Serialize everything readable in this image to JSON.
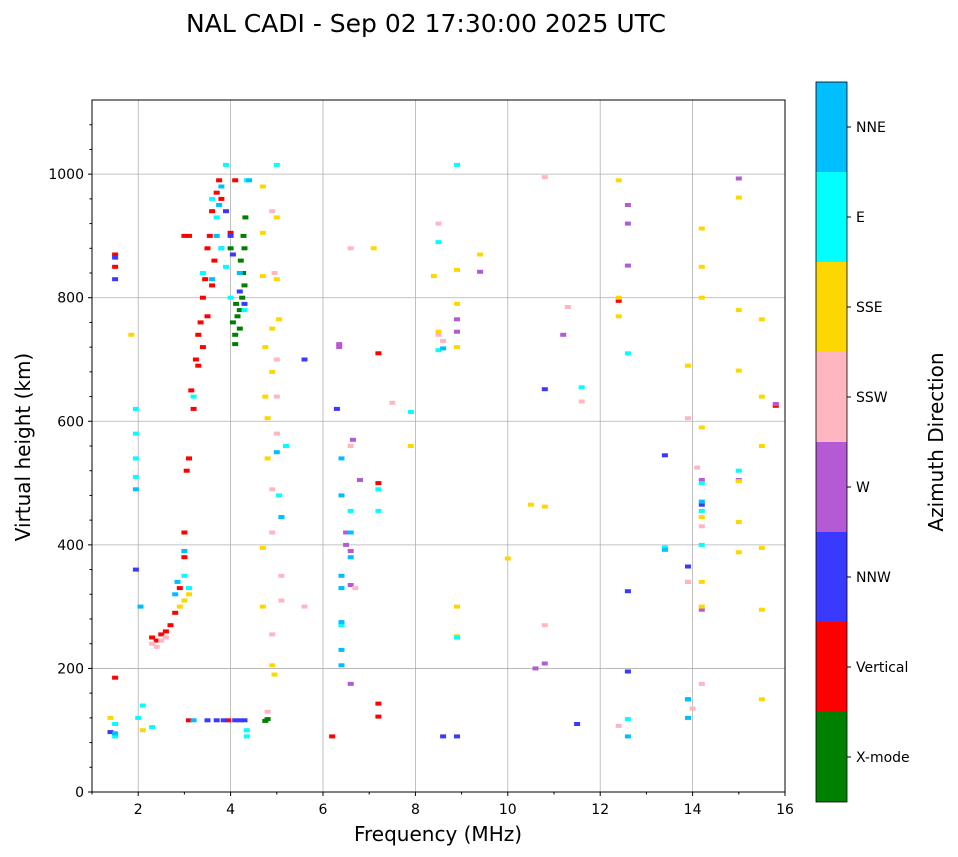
{
  "chart_data": {
    "type": "scatter",
    "title": "NAL CADI - Sep 02 17:30:00 2025 UTC",
    "xlabel": "Frequency (MHz)",
    "ylabel": "Virtual height (km)",
    "xlim": [
      1,
      16
    ],
    "ylim": [
      0,
      1120
    ],
    "xticks": [
      2,
      4,
      6,
      8,
      10,
      12,
      14,
      16
    ],
    "yticks": [
      0,
      200,
      400,
      600,
      800,
      1000
    ],
    "grid": true,
    "colorbar": {
      "label": "Azimuth Direction",
      "categories": [
        {
          "name": "X-mode",
          "color": "#008000"
        },
        {
          "name": "Vertical",
          "color": "#ff0000"
        },
        {
          "name": "NNW",
          "color": "#3a3aff"
        },
        {
          "name": "W",
          "color": "#b45ad4"
        },
        {
          "name": "SSW",
          "color": "#ffb6c1"
        },
        {
          "name": "SSE",
          "color": "#ffd700"
        },
        {
          "name": "E",
          "color": "#00ffff"
        },
        {
          "name": "NNE",
          "color": "#00bfff"
        }
      ]
    },
    "series": [
      {
        "name": "X-mode",
        "points": [
          [
            4.05,
            760
          ],
          [
            4.1,
            740
          ],
          [
            4.15,
            770
          ],
          [
            4.2,
            780
          ],
          [
            4.25,
            800
          ],
          [
            4.3,
            820
          ],
          [
            4.22,
            860
          ],
          [
            4.28,
            900
          ],
          [
            4.32,
            930
          ],
          [
            4.1,
            725
          ],
          [
            4.2,
            750
          ],
          [
            4.12,
            790
          ],
          [
            4.27,
            840
          ],
          [
            4.0,
            880
          ],
          [
            4.3,
            880
          ],
          [
            4.75,
            115
          ],
          [
            4.8,
            118
          ]
        ]
      },
      {
        "name": "Vertical",
        "points": [
          [
            1.5,
            850
          ],
          [
            1.5,
            870
          ],
          [
            1.5,
            185
          ],
          [
            2.3,
            250
          ],
          [
            2.4,
            245
          ],
          [
            2.5,
            255
          ],
          [
            2.6,
            260
          ],
          [
            2.7,
            270
          ],
          [
            2.8,
            290
          ],
          [
            2.9,
            330
          ],
          [
            3.0,
            380
          ],
          [
            3.05,
            520
          ],
          [
            3.1,
            540
          ],
          [
            3.2,
            620
          ],
          [
            3.25,
            700
          ],
          [
            3.3,
            740
          ],
          [
            3.35,
            760
          ],
          [
            3.4,
            800
          ],
          [
            3.45,
            830
          ],
          [
            3.5,
            880
          ],
          [
            3.55,
            900
          ],
          [
            3.6,
            940
          ],
          [
            3.7,
            970
          ],
          [
            3.75,
            990
          ],
          [
            3.8,
            960
          ],
          [
            3.3,
            690
          ],
          [
            3.4,
            720
          ],
          [
            3.5,
            770
          ],
          [
            3.6,
            820
          ],
          [
            3.65,
            860
          ],
          [
            3.15,
            650
          ],
          [
            3.0,
            420
          ],
          [
            3.0,
            900
          ],
          [
            3.1,
            900
          ],
          [
            4.1,
            990
          ],
          [
            4.0,
            905
          ],
          [
            3.1,
            116
          ],
          [
            3.95,
            116
          ],
          [
            6.2,
            90
          ],
          [
            7.2,
            143
          ],
          [
            7.2,
            122
          ],
          [
            7.2,
            710
          ],
          [
            7.2,
            500
          ],
          [
            12.4,
            795
          ],
          [
            15.8,
            625
          ]
        ]
      },
      {
        "name": "NNW",
        "points": [
          [
            1.5,
            830
          ],
          [
            1.5,
            865
          ],
          [
            1.4,
            97
          ],
          [
            3.5,
            116
          ],
          [
            3.7,
            116
          ],
          [
            3.85,
            116
          ],
          [
            4.1,
            116
          ],
          [
            4.2,
            116
          ],
          [
            4.3,
            116
          ],
          [
            4.0,
            900
          ],
          [
            4.05,
            870
          ],
          [
            4.2,
            810
          ],
          [
            4.3,
            790
          ],
          [
            5.6,
            700
          ],
          [
            6.3,
            620
          ],
          [
            8.6,
            90
          ],
          [
            8.9,
            90
          ],
          [
            10.8,
            652
          ],
          [
            11.5,
            110
          ],
          [
            12.6,
            325
          ],
          [
            12.6,
            195
          ],
          [
            13.4,
            545
          ],
          [
            13.9,
            150
          ],
          [
            13.9,
            365
          ],
          [
            14.2,
            465
          ],
          [
            3.8,
            880
          ],
          [
            3.9,
            940
          ],
          [
            1.95,
            360
          ]
        ]
      },
      {
        "name": "W",
        "points": [
          [
            6.35,
            725
          ],
          [
            6.35,
            720
          ],
          [
            6.5,
            420
          ],
          [
            6.5,
            400
          ],
          [
            6.6,
            390
          ],
          [
            6.6,
            335
          ],
          [
            6.6,
            175
          ],
          [
            6.65,
            570
          ],
          [
            6.8,
            505
          ],
          [
            8.9,
            765
          ],
          [
            8.9,
            745
          ],
          [
            9.4,
            842
          ],
          [
            10.6,
            200
          ],
          [
            10.8,
            208
          ],
          [
            11.2,
            740
          ],
          [
            12.6,
            950
          ],
          [
            12.6,
            920
          ],
          [
            12.6,
            852
          ],
          [
            13.9,
            340
          ],
          [
            14.2,
            295
          ],
          [
            14.2,
            505
          ],
          [
            15.0,
            993
          ],
          [
            15.0,
            505
          ],
          [
            15.8,
            628
          ]
        ]
      },
      {
        "name": "SSW",
        "points": [
          [
            2.3,
            240
          ],
          [
            2.4,
            235
          ],
          [
            2.5,
            245
          ],
          [
            2.6,
            250
          ],
          [
            4.8,
            130
          ],
          [
            4.9,
            255
          ],
          [
            4.9,
            420
          ],
          [
            4.9,
            490
          ],
          [
            5.0,
            580
          ],
          [
            5.0,
            640
          ],
          [
            5.0,
            700
          ],
          [
            4.95,
            840
          ],
          [
            4.9,
            940
          ],
          [
            5.1,
            310
          ],
          [
            5.1,
            350
          ],
          [
            5.6,
            300
          ],
          [
            6.6,
            880
          ],
          [
            6.6,
            560
          ],
          [
            6.7,
            330
          ],
          [
            7.5,
            630
          ],
          [
            8.5,
            920
          ],
          [
            8.5,
            740
          ],
          [
            8.6,
            730
          ],
          [
            10.8,
            995
          ],
          [
            10.8,
            270
          ],
          [
            11.3,
            785
          ],
          [
            11.6,
            632
          ],
          [
            12.4,
            107
          ],
          [
            13.9,
            605
          ],
          [
            13.9,
            340
          ],
          [
            14.1,
            525
          ],
          [
            14.2,
            175
          ],
          [
            14.2,
            430
          ],
          [
            14.0,
            135
          ]
        ]
      },
      {
        "name": "SSE",
        "points": [
          [
            1.85,
            740
          ],
          [
            1.4,
            120
          ],
          [
            2.1,
            100
          ],
          [
            2.9,
            300
          ],
          [
            3.0,
            310
          ],
          [
            3.1,
            320
          ],
          [
            4.7,
            980
          ],
          [
            4.7,
            905
          ],
          [
            4.7,
            835
          ],
          [
            4.75,
            720
          ],
          [
            4.75,
            640
          ],
          [
            4.8,
            605
          ],
          [
            4.8,
            540
          ],
          [
            4.9,
            680
          ],
          [
            4.9,
            750
          ],
          [
            5.0,
            830
          ],
          [
            5.0,
            930
          ],
          [
            4.9,
            205
          ],
          [
            4.95,
            190
          ],
          [
            4.7,
            300
          ],
          [
            4.7,
            395
          ],
          [
            5.05,
            765
          ],
          [
            7.1,
            880
          ],
          [
            7.9,
            560
          ],
          [
            8.4,
            835
          ],
          [
            8.5,
            745
          ],
          [
            8.9,
            845
          ],
          [
            8.9,
            790
          ],
          [
            8.9,
            720
          ],
          [
            8.9,
            300
          ],
          [
            8.9,
            252
          ],
          [
            9.4,
            870
          ],
          [
            10.0,
            378
          ],
          [
            10.5,
            465
          ],
          [
            10.8,
            462
          ],
          [
            12.4,
            990
          ],
          [
            12.4,
            770
          ],
          [
            13.9,
            690
          ],
          [
            14.2,
            912
          ],
          [
            14.2,
            850
          ],
          [
            14.2,
            800
          ],
          [
            14.2,
            590
          ],
          [
            14.2,
            445
          ],
          [
            14.2,
            340
          ],
          [
            14.2,
            300
          ],
          [
            15.0,
            962
          ],
          [
            15.0,
            780
          ],
          [
            15.0,
            682
          ],
          [
            15.0,
            503
          ],
          [
            15.0,
            437
          ],
          [
            15.0,
            388
          ],
          [
            15.5,
            765
          ],
          [
            15.5,
            640
          ],
          [
            15.5,
            560
          ],
          [
            15.5,
            395
          ],
          [
            15.5,
            295
          ],
          [
            15.5,
            150
          ],
          [
            12.4,
            800
          ]
        ]
      },
      {
        "name": "E",
        "points": [
          [
            1.5,
            110
          ],
          [
            1.5,
            90
          ],
          [
            2.0,
            120
          ],
          [
            2.1,
            140
          ],
          [
            2.3,
            105
          ],
          [
            3.0,
            350
          ],
          [
            3.1,
            330
          ],
          [
            3.2,
            640
          ],
          [
            3.4,
            840
          ],
          [
            3.9,
            1015
          ],
          [
            3.6,
            960
          ],
          [
            3.7,
            930
          ],
          [
            3.8,
            880
          ],
          [
            3.9,
            850
          ],
          [
            4.0,
            800
          ],
          [
            4.3,
            780
          ],
          [
            4.35,
            990
          ],
          [
            4.35,
            90
          ],
          [
            4.35,
            100
          ],
          [
            5.0,
            1015
          ],
          [
            5.05,
            480
          ],
          [
            5.1,
            445
          ],
          [
            5.2,
            560
          ],
          [
            6.4,
            330
          ],
          [
            6.4,
            270
          ],
          [
            6.6,
            455
          ],
          [
            7.2,
            490
          ],
          [
            7.2,
            455
          ],
          [
            7.9,
            615
          ],
          [
            8.5,
            890
          ],
          [
            8.5,
            715
          ],
          [
            8.9,
            1015
          ],
          [
            8.9,
            250
          ],
          [
            11.6,
            655
          ],
          [
            12.6,
            710
          ],
          [
            12.6,
            118
          ],
          [
            14.2,
            455
          ],
          [
            14.2,
            400
          ],
          [
            14.2,
            500
          ],
          [
            15.0,
            520
          ],
          [
            13.4,
            396
          ],
          [
            1.95,
            620
          ],
          [
            1.95,
            580
          ],
          [
            1.95,
            540
          ],
          [
            1.95,
            510
          ]
        ]
      },
      {
        "name": "NNE",
        "points": [
          [
            1.5,
            95
          ],
          [
            1.95,
            490
          ],
          [
            2.05,
            300
          ],
          [
            2.8,
            320
          ],
          [
            2.85,
            340
          ],
          [
            3.0,
            390
          ],
          [
            3.2,
            116
          ],
          [
            3.6,
            830
          ],
          [
            3.7,
            900
          ],
          [
            3.75,
            950
          ],
          [
            3.8,
            980
          ],
          [
            4.2,
            840
          ],
          [
            4.4,
            990
          ],
          [
            5.0,
            550
          ],
          [
            5.1,
            445
          ],
          [
            6.4,
            540
          ],
          [
            6.4,
            480
          ],
          [
            6.4,
            350
          ],
          [
            6.4,
            330
          ],
          [
            6.4,
            275
          ],
          [
            6.4,
            230
          ],
          [
            6.4,
            205
          ],
          [
            6.6,
            380
          ],
          [
            6.6,
            420
          ],
          [
            8.6,
            718
          ],
          [
            12.6,
            90
          ],
          [
            13.4,
            392
          ],
          [
            13.9,
            120
          ],
          [
            13.9,
            150
          ],
          [
            14.2,
            470
          ]
        ]
      }
    ]
  }
}
